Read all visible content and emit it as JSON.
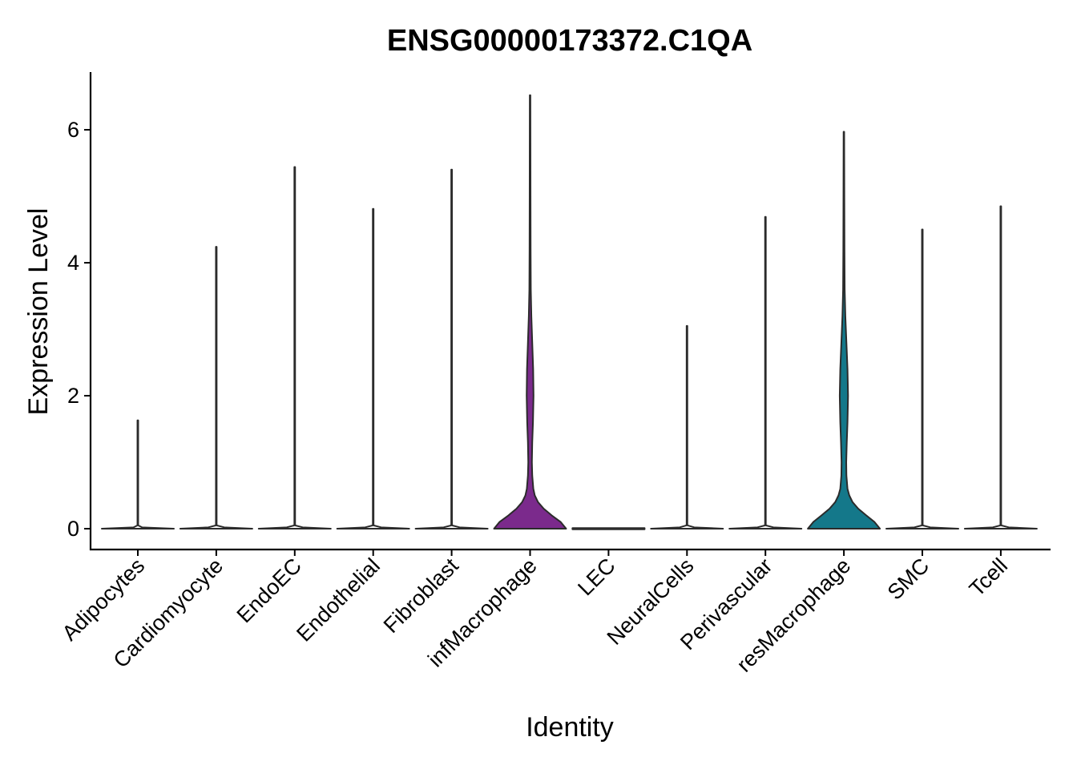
{
  "chart_data": {
    "type": "violin",
    "title": "ENSG00000173372.C1QA",
    "xlabel": "Identity",
    "ylabel": "Expression Level",
    "ylim": [
      -0.33,
      6.83
    ],
    "yticks": [
      0,
      2,
      4,
      6
    ],
    "grid": false,
    "legend": "none",
    "categories": [
      "Adipocytes",
      "Cardiomyocyte",
      "EndoEC",
      "Endothelial",
      "Fibroblast",
      "infMacrophage",
      "LEC",
      "NeuralCells",
      "Perivascular",
      "resMacrophage",
      "SMC",
      "Tcell"
    ],
    "series": [
      {
        "category": "Adipocytes",
        "max": 1.63,
        "color": "#ffffff",
        "density": [
          [
            0,
            1.0
          ],
          [
            0.02,
            0.12
          ],
          [
            0.05,
            0.01
          ],
          [
            1.63,
            0.01
          ]
        ]
      },
      {
        "category": "Cardiomyocyte",
        "max": 4.24,
        "color": "#ffffff",
        "density": [
          [
            0,
            1.0
          ],
          [
            0.02,
            0.22
          ],
          [
            0.05,
            0.01
          ],
          [
            4.24,
            0.01
          ]
        ]
      },
      {
        "category": "EndoEC",
        "max": 5.44,
        "color": "#ffffff",
        "density": [
          [
            0,
            1.0
          ],
          [
            0.02,
            0.22
          ],
          [
            0.05,
            0.01
          ],
          [
            5.44,
            0.01
          ]
        ]
      },
      {
        "category": "Endothelial",
        "max": 4.81,
        "color": "#ffffff",
        "density": [
          [
            0,
            1.0
          ],
          [
            0.02,
            0.22
          ],
          [
            0.05,
            0.01
          ],
          [
            4.81,
            0.01
          ]
        ]
      },
      {
        "category": "Fibroblast",
        "max": 5.4,
        "color": "#ffffff",
        "density": [
          [
            0,
            1.0
          ],
          [
            0.02,
            0.22
          ],
          [
            0.05,
            0.01
          ],
          [
            5.4,
            0.01
          ]
        ]
      },
      {
        "category": "infMacrophage",
        "max": 6.52,
        "color": "#7b2a8c",
        "density": [
          [
            0,
            1.0
          ],
          [
            0.1,
            0.85
          ],
          [
            0.2,
            0.6
          ],
          [
            0.3,
            0.38
          ],
          [
            0.4,
            0.22
          ],
          [
            0.5,
            0.13
          ],
          [
            0.6,
            0.09
          ],
          [
            0.8,
            0.06
          ],
          [
            1.0,
            0.05
          ],
          [
            1.3,
            0.06
          ],
          [
            1.6,
            0.08
          ],
          [
            2.0,
            0.095
          ],
          [
            2.4,
            0.085
          ],
          [
            2.8,
            0.06
          ],
          [
            3.2,
            0.035
          ],
          [
            3.6,
            0.02
          ],
          [
            4.2,
            0.015
          ],
          [
            5.0,
            0.012
          ],
          [
            6.52,
            0.008
          ]
        ]
      },
      {
        "category": "LEC",
        "max": 0,
        "color": "#ffffff",
        "density": [
          [
            0,
            1.0
          ]
        ]
      },
      {
        "category": "NeuralCells",
        "max": 3.05,
        "color": "#ffffff",
        "density": [
          [
            0,
            1.0
          ],
          [
            0.02,
            0.2
          ],
          [
            0.05,
            0.01
          ],
          [
            3.05,
            0.01
          ]
        ]
      },
      {
        "category": "Perivascular",
        "max": 4.69,
        "color": "#ffffff",
        "density": [
          [
            0,
            1.0
          ],
          [
            0.02,
            0.22
          ],
          [
            0.05,
            0.01
          ],
          [
            4.69,
            0.01
          ]
        ]
      },
      {
        "category": "resMacrophage",
        "max": 5.97,
        "color": "#14788a",
        "density": [
          [
            0,
            1.0
          ],
          [
            0.1,
            0.85
          ],
          [
            0.2,
            0.62
          ],
          [
            0.3,
            0.4
          ],
          [
            0.4,
            0.24
          ],
          [
            0.5,
            0.15
          ],
          [
            0.6,
            0.1
          ],
          [
            0.8,
            0.07
          ],
          [
            1.0,
            0.065
          ],
          [
            1.3,
            0.08
          ],
          [
            1.6,
            0.1
          ],
          [
            2.0,
            0.115
          ],
          [
            2.4,
            0.1
          ],
          [
            2.8,
            0.07
          ],
          [
            3.2,
            0.04
          ],
          [
            3.6,
            0.022
          ],
          [
            4.2,
            0.016
          ],
          [
            5.0,
            0.012
          ],
          [
            5.97,
            0.008
          ]
        ]
      },
      {
        "category": "SMC",
        "max": 4.5,
        "color": "#ffffff",
        "density": [
          [
            0,
            1.0
          ],
          [
            0.02,
            0.22
          ],
          [
            0.05,
            0.01
          ],
          [
            4.5,
            0.01
          ]
        ]
      },
      {
        "category": "Tcell",
        "max": 4.85,
        "color": "#ffffff",
        "density": [
          [
            0,
            1.0
          ],
          [
            0.02,
            0.22
          ],
          [
            0.05,
            0.01
          ],
          [
            4.85,
            0.01
          ]
        ]
      }
    ]
  }
}
